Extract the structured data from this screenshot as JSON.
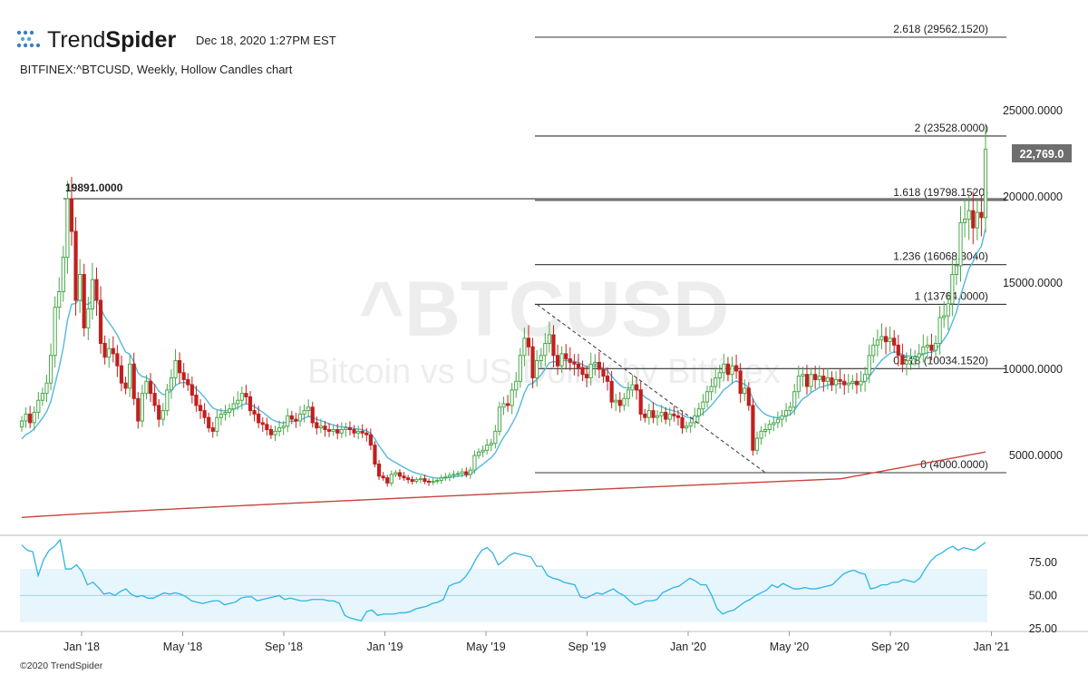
{
  "header": {
    "brand_light": "Trend",
    "brand_bold": "Spider",
    "timestamp": "Dec 18, 2020 1:27PM EST",
    "subtitle": "BITFINEX:^BTCUSD, Weekly, Hollow Candles chart",
    "icon": "spider-logo-icon"
  },
  "watermark": {
    "symbol": "^BTCUSD",
    "description": "Bitcoin vs US Dollar by Bitfinex"
  },
  "footer": {
    "copyright": "©2020 TrendSpider"
  },
  "colors": {
    "up": "#4aa84a",
    "down": "#c0201e",
    "ma_fast": "#55b7df",
    "ma_slow": "#c8453c",
    "rsi": "#2fb4e4",
    "rsi_band": "#e6f6fc",
    "price_box": "#6e6e6e"
  },
  "chart_data": {
    "type": "candlestick",
    "interval": "Weekly",
    "symbol": "BITFINEX:^BTCUSD",
    "x_ticks": [
      "Jan '18",
      "May '18",
      "Sep '18",
      "Jan '19",
      "May '19",
      "Sep '19",
      "Jan '20",
      "May '20",
      "Sep '20",
      "Jan '21"
    ],
    "y_ticks": [
      "25000.0000",
      "20000.0000",
      "15000.0000",
      "10000.0000",
      "5000.0000"
    ],
    "y_tick_values": [
      25000,
      20000,
      15000,
      10000,
      5000
    ],
    "current_price_label": "22,769.0",
    "current_price": 22769,
    "peak_label": "19891.0000",
    "peak_value": 19891,
    "fib_levels": [
      {
        "label": "2.618 (29562.1520)",
        "value": 29562.152
      },
      {
        "label": "2 (23528.0000)",
        "value": 23528
      },
      {
        "label": "1.618 (19798.1520)",
        "value": 19798.152
      },
      {
        "label": "1.236 (16068.3040)",
        "value": 16068.304
      },
      {
        "label": "1 (13764.0000)",
        "value": 13764
      },
      {
        "label": "0.618 (10034.1520)",
        "value": 10034.152
      },
      {
        "label": "0 (4000.0000)",
        "value": 4000
      }
    ],
    "candle_closes": [
      7000,
      7400,
      6900,
      7500,
      8200,
      8600,
      9200,
      10800,
      13600,
      14500,
      16500,
      19891,
      18000,
      14000,
      15500,
      12400,
      13500,
      15200,
      14000,
      11500,
      10700,
      11200,
      10900,
      10200,
      9200,
      8900,
      10300,
      8300,
      7000,
      8600,
      9300,
      8600,
      7900,
      7100,
      7600,
      8800,
      9500,
      10500,
      9800,
      9400,
      9100,
      8500,
      7900,
      7600,
      7200,
      6600,
      6400,
      7200,
      7400,
      7500,
      7700,
      8000,
      8200,
      8600,
      8400,
      7600,
      7400,
      6900,
      6800,
      6500,
      6200,
      6400,
      6600,
      6700,
      7300,
      7100,
      7000,
      7400,
      7600,
      7800,
      6900,
      6600,
      6700,
      6500,
      6400,
      6500,
      6300,
      6500,
      6600,
      6500,
      6300,
      6400,
      6300,
      6200,
      5600,
      4500,
      3800,
      3700,
      3400,
      3900,
      4000,
      3800,
      3700,
      3600,
      3500,
      3600,
      3650,
      3500,
      3450,
      3500,
      3550,
      3700,
      3750,
      3850,
      3900,
      3950,
      4050,
      3900,
      4150,
      5000,
      5200,
      5300,
      5600,
      5700,
      6400,
      7800,
      8000,
      7900,
      8800,
      9300,
      10800,
      11800,
      11300,
      9500,
      10500,
      10800,
      11500,
      12000,
      10800,
      10200,
      10900,
      10600,
      10400,
      10300,
      10100,
      9700,
      9500,
      10300,
      10400,
      10000,
      9600,
      9300,
      8100,
      8200,
      7900,
      8300,
      8800,
      9100,
      8800,
      7400,
      7200,
      7600,
      7200,
      7300,
      7500,
      7100,
      7400,
      7300,
      7200,
      6600,
      6700,
      6900,
      7300,
      7700,
      8100,
      8700,
      9000,
      9500,
      9800,
      10300,
      9700,
      10200,
      9900,
      8600,
      8900,
      7900,
      5300,
      6000,
      6400,
      6500,
      6800,
      6900,
      7100,
      7300,
      7600,
      7800,
      8700,
      9600,
      9700,
      9000,
      9700,
      9400,
      9600,
      9300,
      9500,
      9100,
      9400,
      9300,
      9100,
      9200,
      9300,
      9100,
      9300,
      9700,
      10800,
      11400,
      11700,
      11900,
      11600,
      11800,
      11400,
      10800,
      10300,
      10500,
      10600,
      10700,
      10900,
      11300,
      11400,
      11100,
      11500,
      13000,
      13100,
      13800,
      15500,
      16000,
      18500,
      18700,
      19200,
      18200,
      19100,
      18800,
      22769
    ],
    "candle_intervals": [
      "weekly"
    ],
    "ma_fast_note_period": "",
    "rsi_ticks": [
      "75.00",
      "50.00",
      "25.00"
    ],
    "rsi_tick_values": [
      75,
      50,
      25
    ],
    "rsi_band": [
      30,
      70
    ],
    "rsi_values": [
      88,
      84,
      83,
      65,
      77,
      84,
      87,
      92,
      70,
      70,
      73,
      68,
      58,
      60,
      56,
      51,
      52,
      50,
      53,
      55,
      51,
      49,
      50,
      48,
      48,
      50,
      52,
      51,
      52,
      51,
      49,
      46,
      45,
      44,
      45,
      46,
      46,
      43,
      44,
      45,
      48,
      49,
      49,
      46,
      47,
      48,
      49,
      50,
      47,
      48,
      47,
      46,
      46,
      47,
      47,
      47,
      46,
      46,
      44,
      35,
      33,
      32,
      31,
      38,
      39,
      35,
      36,
      36,
      36,
      37,
      37,
      38,
      40,
      41,
      42,
      44,
      45,
      47,
      57,
      59,
      60,
      64,
      70,
      78,
      84,
      86,
      82,
      73,
      76,
      80,
      82,
      81,
      80,
      79,
      72,
      72,
      65,
      63,
      62,
      60,
      59,
      58,
      49,
      48,
      50,
      52,
      51,
      53,
      55,
      52,
      50,
      46,
      43,
      44,
      46,
      46,
      47,
      52,
      54,
      56,
      57,
      60,
      63,
      61,
      58,
      58,
      50,
      40,
      36,
      38,
      39,
      42,
      45,
      47,
      50,
      52,
      54,
      58,
      56,
      59,
      57,
      55,
      55,
      56,
      55,
      55,
      56,
      57,
      58,
      62,
      66,
      68,
      69,
      67,
      66,
      55,
      56,
      58,
      58,
      60,
      60,
      62,
      61,
      60,
      63,
      70,
      76,
      80,
      82,
      85,
      87,
      84,
      86,
      85,
      84,
      87,
      90
    ]
  }
}
